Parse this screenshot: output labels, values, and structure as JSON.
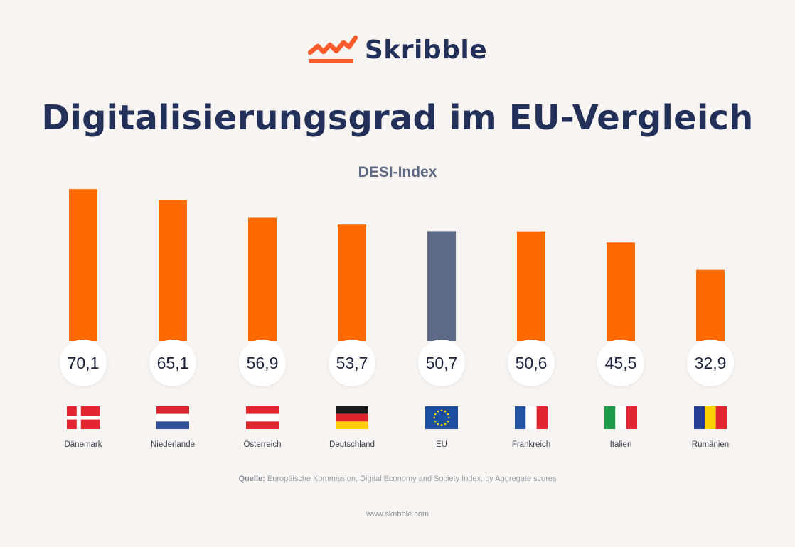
{
  "brand": {
    "name": "Skribble"
  },
  "header": {
    "title": "Digitalisierungsgrad im EU-Vergleich"
  },
  "colors": {
    "bar": "#ff6a00",
    "highlight": "#5c6a88",
    "text": "#22305a",
    "background": "#f7f4f1"
  },
  "chart_data": {
    "type": "bar",
    "subtitle": "DESI-Index",
    "categories": [
      "Dänemark",
      "Niederlande",
      "Österreich",
      "Deutschland",
      "EU",
      "Frankreich",
      "Italien",
      "Rumänien"
    ],
    "values": [
      70.1,
      65.1,
      56.9,
      53.7,
      50.7,
      50.6,
      45.5,
      32.9
    ],
    "value_labels": [
      "70,1",
      "65,1",
      "56,9",
      "53,7",
      "50,7",
      "50,6",
      "45,5",
      "32,9"
    ],
    "highlight_category": "EU",
    "flags": [
      "flag-denmark-icon",
      "flag-netherlands-icon",
      "flag-austria-icon",
      "flag-germany-icon",
      "flag-eu-icon",
      "flag-france-icon",
      "flag-italy-icon",
      "flag-romania-icon"
    ],
    "grid": false,
    "legend": "none"
  },
  "source": {
    "label": "Quelle:",
    "text": "Europäische Kommission, Digital Economy and Society Index, by Aggregate scores"
  },
  "footer": {
    "url": "www.skribble.com"
  }
}
